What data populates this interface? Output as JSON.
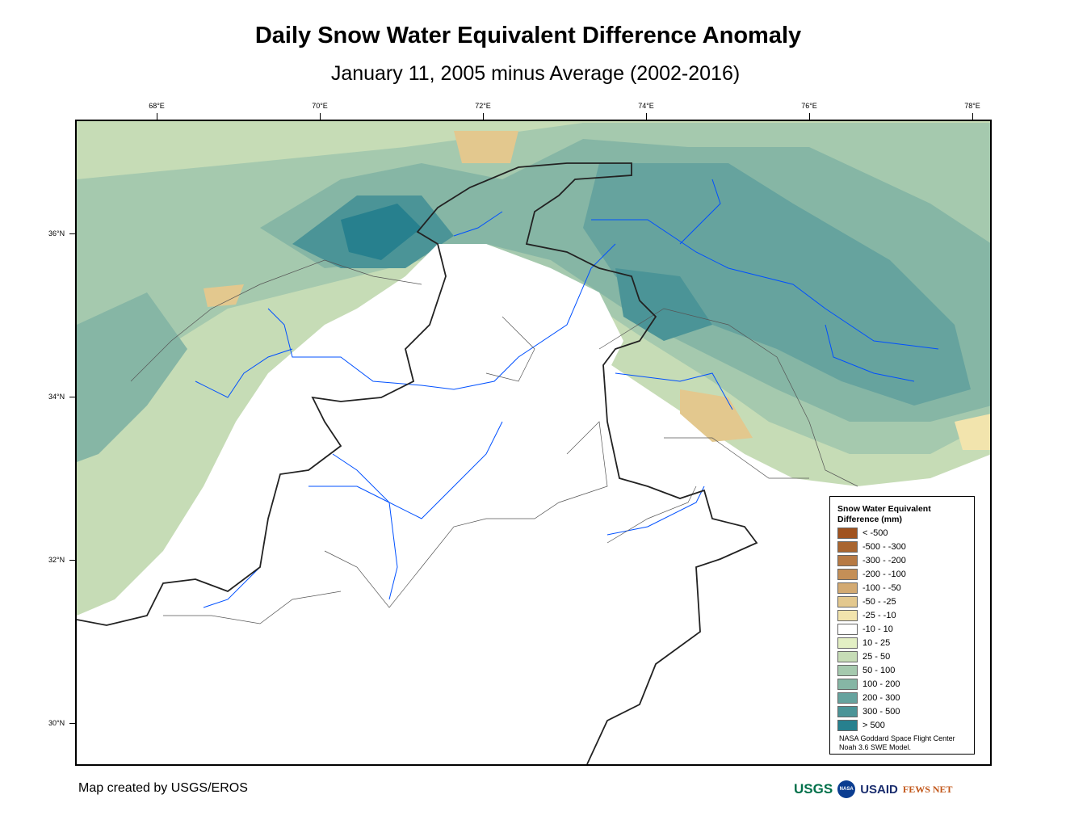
{
  "title": "Daily Snow Water Equivalent Difference Anomaly",
  "subtitle": "January 11, 2005 minus Average (2002-2016)",
  "axes": {
    "longitude_labels": [
      "68°E",
      "70°E",
      "72°E",
      "74°E",
      "76°E",
      "78°E"
    ],
    "latitude_labels": [
      "36°N",
      "34°N",
      "32°N",
      "30°N"
    ]
  },
  "legend": {
    "title": "Snow Water Equivalent Difference (mm)",
    "classes": [
      {
        "label": "< -500",
        "color": "#a0521e"
      },
      {
        "label": "-500 - -300",
        "color": "#a9652f"
      },
      {
        "label": "-300 - -200",
        "color": "#b77a44"
      },
      {
        "label": "-200 - -100",
        "color": "#c48f57"
      },
      {
        "label": "-100 - -50",
        "color": "#d3aa72"
      },
      {
        "label": "-50 - -25",
        "color": "#e3c88e"
      },
      {
        "label": "-25 - -10",
        "color": "#f2e4ad"
      },
      {
        "label": "-10 - 10",
        "color": "#ffffff"
      },
      {
        "label": "10 - 25",
        "color": "#e3efc4"
      },
      {
        "label": "25 - 50",
        "color": "#c6dcb6"
      },
      {
        "label": "50 - 100",
        "color": "#a5c9ae"
      },
      {
        "label": "100 - 200",
        "color": "#86b6a5"
      },
      {
        "label": "200 - 300",
        "color": "#66a39e"
      },
      {
        "label": "300 - 500",
        "color": "#4b9497"
      },
      {
        "label": "> 500",
        "color": "#27808e"
      }
    ],
    "source": [
      "NASA Goddard Space Flight Center",
      "Noah 3.6 SWE Model."
    ]
  },
  "credit": "Map created by USGS/EROS",
  "logos": [
    "USGS",
    "NASA",
    "USAID",
    "FEWS NET"
  ]
}
